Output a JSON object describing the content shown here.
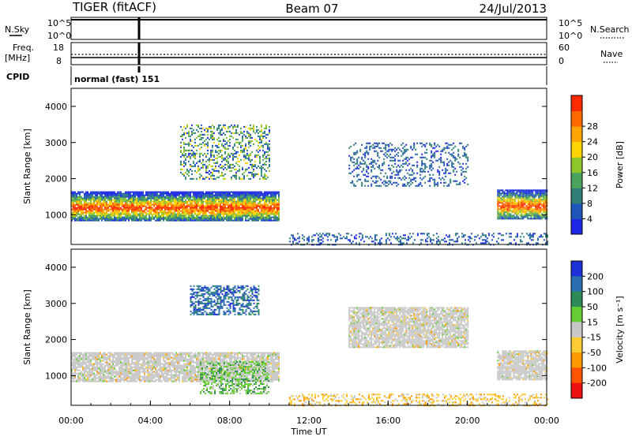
{
  "header": {
    "radar": "TIGER (fitACF)",
    "beam": "Beam 07",
    "date": "24/Jul/2013"
  },
  "noise_panel": {
    "left_label": "N.Sky",
    "right_label": "N.Search",
    "left_ticks": [
      "10^5",
      "10^0"
    ],
    "right_ticks": [
      "10^5",
      "10^0"
    ]
  },
  "freq_panel": {
    "left_label_line1": "Freq.",
    "left_label_line2": "[MHz]",
    "right_label": "Nave",
    "left_ticks": [
      "18",
      "8"
    ],
    "right_ticks": [
      "60",
      "0"
    ]
  },
  "cpid": {
    "label": "CPID",
    "text": "normal (fast) 151"
  },
  "chart_data": [
    {
      "type": "heatmap",
      "ylabel": "Slant Range [km]",
      "ylim": [
        180,
        4500
      ],
      "xlim": [
        0,
        24
      ],
      "y_ticks": [
        "1000",
        "2000",
        "3000",
        "4000"
      ],
      "colorbar": {
        "label": "Power [dB]",
        "ticks": [
          "4",
          "8",
          "12",
          "16",
          "20",
          "24",
          "28"
        ],
        "colors": [
          "#1d28e6",
          "#1f55b8",
          "#2f7f78",
          "#4aa35c",
          "#8fc62b",
          "#ffd400",
          "#ffa500",
          "#ff6a00",
          "#ff2a00"
        ]
      },
      "features": [
        {
          "hours": [
            0,
            10.5
          ],
          "range_km": [
            850,
            1650
          ],
          "level": "high"
        },
        {
          "hours": [
            5.5,
            10.0
          ],
          "range_km": [
            2000,
            3500
          ],
          "level": "medium"
        },
        {
          "hours": [
            14.0,
            20.0
          ],
          "range_km": [
            1800,
            3000
          ],
          "level": "low"
        },
        {
          "hours": [
            21.5,
            24
          ],
          "range_km": [
            900,
            1700
          ],
          "level": "high"
        },
        {
          "hours": [
            11.0,
            24
          ],
          "range_km": [
            180,
            500
          ],
          "level": "low"
        }
      ]
    },
    {
      "type": "heatmap",
      "ylabel": "Slant Range [km]",
      "ylim": [
        180,
        4500
      ],
      "xlim": [
        0,
        24
      ],
      "y_ticks": [
        "1000",
        "2000",
        "3000",
        "4000"
      ],
      "x_ticks": [
        "00:00",
        "04:00",
        "08:00",
        "12:00",
        "16:00",
        "20:00",
        "00:00"
      ],
      "xlabel": "Time UT",
      "colorbar": {
        "label": "Velocity [m s⁻¹]",
        "ticks": [
          "200",
          "100",
          "50",
          "15",
          "-15",
          "-50",
          "-100",
          "-200"
        ],
        "colors": [
          "#1d2fd6",
          "#2a6fb0",
          "#2e8b57",
          "#66cc33",
          "#c8c8c8",
          "#ffcc33",
          "#ff9900",
          "#ff5500",
          "#ee1111"
        ]
      },
      "features": [
        {
          "hours": [
            0,
            10.5
          ],
          "range_km": [
            850,
            1650
          ],
          "value": "ground scatter"
        },
        {
          "hours": [
            6.5,
            10.0
          ],
          "range_km": [
            500,
            1400
          ],
          "value": "50"
        },
        {
          "hours": [
            6.0,
            9.5
          ],
          "range_km": [
            2700,
            3500
          ],
          "value": "100"
        },
        {
          "hours": [
            14.0,
            20.0
          ],
          "range_km": [
            1800,
            2900
          ],
          "value": "ground scatter"
        },
        {
          "hours": [
            21.5,
            24
          ],
          "range_km": [
            900,
            1700
          ],
          "value": "ground scatter"
        },
        {
          "hours": [
            11.0,
            24
          ],
          "range_km": [
            180,
            500
          ],
          "value": "-15"
        }
      ]
    }
  ]
}
